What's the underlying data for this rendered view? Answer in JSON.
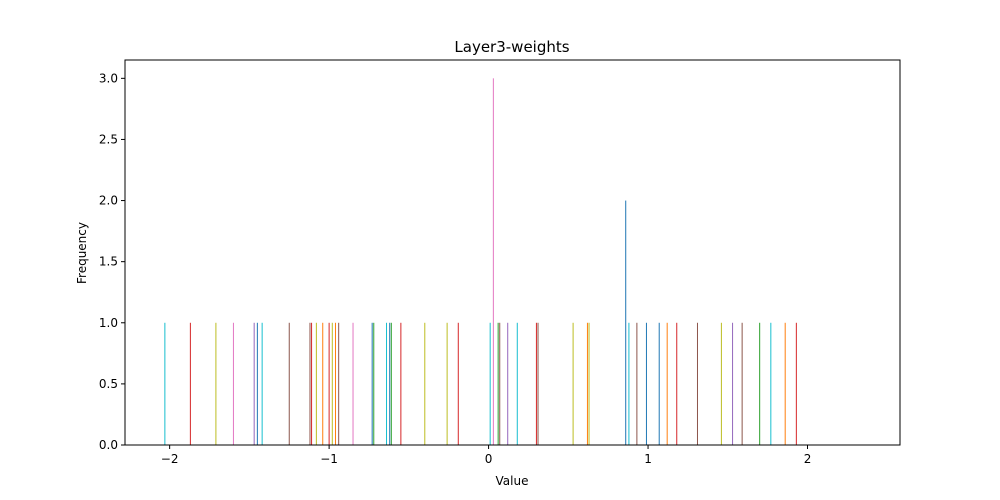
{
  "chart_data": {
    "type": "bar",
    "subtype": "histogram",
    "title": "Layer3-weights",
    "xlabel": "Value",
    "ylabel": "Frequency",
    "xlim": [
      -2.28,
      2.58
    ],
    "ylim": [
      0,
      3.15
    ],
    "x_ticks": [
      -2,
      -1,
      0,
      1,
      2
    ],
    "x_tick_labels": [
      "−2",
      "−1",
      "0",
      "1",
      "2"
    ],
    "y_ticks": [
      0,
      0.5,
      1,
      1.5,
      2,
      2.5,
      3
    ],
    "y_tick_labels": [
      "0.0",
      "0.5",
      "1.0",
      "1.5",
      "2.0",
      "2.5",
      "3.0"
    ],
    "grid": false,
    "legend": "none",
    "series": [
      {
        "x": -2.03,
        "value": 1,
        "color": "#17becf"
      },
      {
        "x": -1.87,
        "value": 1,
        "color": "#d62728"
      },
      {
        "x": -1.71,
        "value": 1,
        "color": "#bcbd22"
      },
      {
        "x": -1.6,
        "value": 1,
        "color": "#e377c2"
      },
      {
        "x": -1.47,
        "value": 1,
        "color": "#9467bd"
      },
      {
        "x": -1.45,
        "value": 1,
        "color": "#1f77b4"
      },
      {
        "x": -1.42,
        "value": 1,
        "color": "#17becf"
      },
      {
        "x": -1.25,
        "value": 1,
        "color": "#8c564b"
      },
      {
        "x": -1.12,
        "value": 1,
        "color": "#8c564b"
      },
      {
        "x": -1.11,
        "value": 1,
        "color": "#d62728"
      },
      {
        "x": -1.08,
        "value": 1,
        "color": "#bcbd22"
      },
      {
        "x": -1.04,
        "value": 1,
        "color": "#ff7f0e"
      },
      {
        "x": -1.0,
        "value": 1,
        "color": "#d62728"
      },
      {
        "x": -0.98,
        "value": 1,
        "color": "#bcbd22"
      },
      {
        "x": -0.96,
        "value": 1,
        "color": "#ff7f0e"
      },
      {
        "x": -0.94,
        "value": 1,
        "color": "#8c564b"
      },
      {
        "x": -0.85,
        "value": 1,
        "color": "#e377c2"
      },
      {
        "x": -0.73,
        "value": 1,
        "color": "#1f77b4"
      },
      {
        "x": -0.72,
        "value": 1,
        "color": "#2ca02c"
      },
      {
        "x": -0.64,
        "value": 1,
        "color": "#17becf"
      },
      {
        "x": -0.62,
        "value": 1,
        "color": "#1f77b4"
      },
      {
        "x": -0.61,
        "value": 1,
        "color": "#2ca02c"
      },
      {
        "x": -0.55,
        "value": 1,
        "color": "#d62728"
      },
      {
        "x": -0.4,
        "value": 1,
        "color": "#bcbd22"
      },
      {
        "x": -0.26,
        "value": 1,
        "color": "#bcbd22"
      },
      {
        "x": -0.19,
        "value": 1,
        "color": "#d62728"
      },
      {
        "x": 0.01,
        "value": 1,
        "color": "#17becf"
      },
      {
        "x": 0.03,
        "value": 3,
        "color": "#e377c2"
      },
      {
        "x": 0.06,
        "value": 1,
        "color": "#2ca02c"
      },
      {
        "x": 0.07,
        "value": 1,
        "color": "#8c564b"
      },
      {
        "x": 0.12,
        "value": 1,
        "color": "#9467bd"
      },
      {
        "x": 0.18,
        "value": 1,
        "color": "#17becf"
      },
      {
        "x": 0.3,
        "value": 1,
        "color": "#d62728"
      },
      {
        "x": 0.31,
        "value": 1,
        "color": "#8c564b"
      },
      {
        "x": 0.53,
        "value": 1,
        "color": "#bcbd22"
      },
      {
        "x": 0.62,
        "value": 1,
        "color": "#ff7f0e"
      },
      {
        "x": 0.63,
        "value": 1,
        "color": "#bcbd22"
      },
      {
        "x": 0.86,
        "value": 2,
        "color": "#1f77b4"
      },
      {
        "x": 0.88,
        "value": 1,
        "color": "#17becf"
      },
      {
        "x": 0.93,
        "value": 1,
        "color": "#8c564b"
      },
      {
        "x": 0.99,
        "value": 1,
        "color": "#1f77b4"
      },
      {
        "x": 1.07,
        "value": 1,
        "color": "#1f77b4"
      },
      {
        "x": 1.12,
        "value": 1,
        "color": "#ff7f0e"
      },
      {
        "x": 1.18,
        "value": 1,
        "color": "#d62728"
      },
      {
        "x": 1.31,
        "value": 1,
        "color": "#8c564b"
      },
      {
        "x": 1.46,
        "value": 1,
        "color": "#bcbd22"
      },
      {
        "x": 1.53,
        "value": 1,
        "color": "#9467bd"
      },
      {
        "x": 1.59,
        "value": 1,
        "color": "#8c564b"
      },
      {
        "x": 1.7,
        "value": 1,
        "color": "#2ca02c"
      },
      {
        "x": 1.77,
        "value": 1,
        "color": "#17becf"
      },
      {
        "x": 1.86,
        "value": 1,
        "color": "#ff7f0e"
      },
      {
        "x": 1.93,
        "value": 1,
        "color": "#d62728"
      }
    ]
  }
}
